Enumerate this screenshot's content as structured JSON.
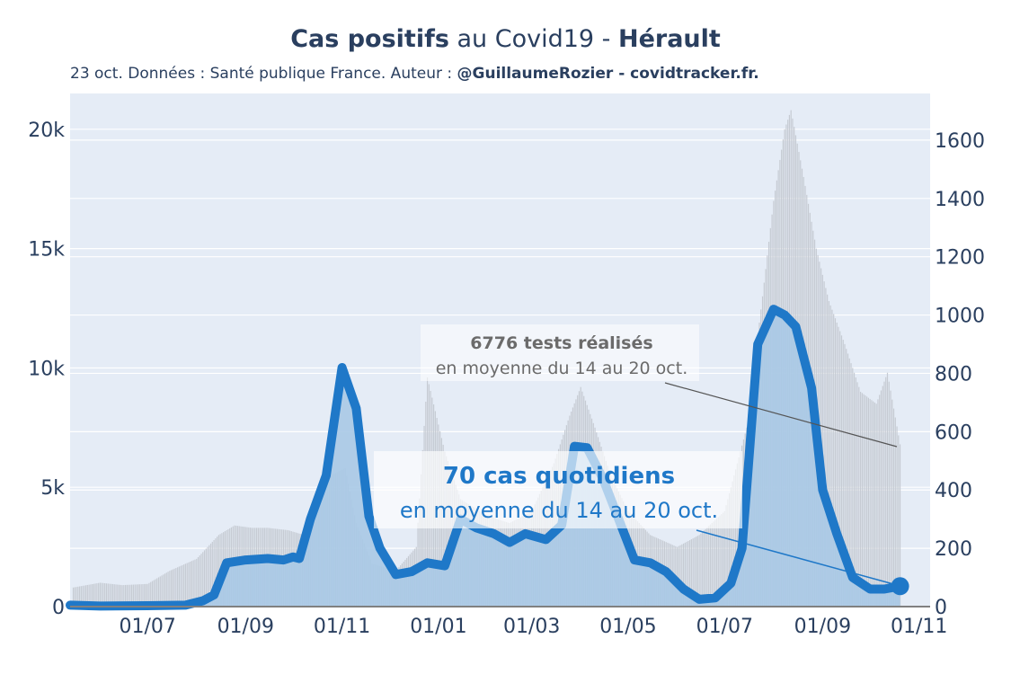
{
  "title": {
    "part1": "Cas positifs",
    "part2": " au Covid19 - ",
    "part3": "Hérault"
  },
  "subtitle": {
    "text": "23 oct. Données : Santé publique France. Auteur : ",
    "author": "@GuillaumeRozier - covidtracker.fr."
  },
  "colors": {
    "cases_line": "#1f78c8",
    "cases_fill": "#a9c9e6",
    "tests_bars": "#c6cbd3",
    "plot_bg": "#e5ecf6",
    "grid": "#ffffff",
    "annotation_bg": "#ffffff"
  },
  "annotations": {
    "tests": {
      "bold": "6776 tests réalisés",
      "text": "en moyenne du 14 au 20 oct."
    },
    "cases": {
      "bold": "70 cas quotidiens",
      "text": "en moyenne du 14 au 20 oct."
    }
  },
  "chart_data": {
    "type": "line",
    "x_tick_labels": [
      "01/07",
      "01/09",
      "01/11",
      "01/01",
      "01/03",
      "01/05",
      "01/07",
      "01/09",
      "01/11"
    ],
    "x_range": [
      "2020-05-13",
      "2021-11-08"
    ],
    "y_left": {
      "tick_labels": [
        "0",
        "5k",
        "10k",
        "15k",
        "20k"
      ],
      "range": [
        0,
        21500
      ]
    },
    "y_right": {
      "tick_labels": [
        "0",
        "200",
        "400",
        "600",
        "800",
        "1000",
        "1200",
        "1400",
        "1600"
      ],
      "range": [
        0,
        1760
      ]
    },
    "legend": "none",
    "grid": true,
    "series": [
      {
        "axis": "left",
        "style": "bars",
        "points": [
          [
            "2020-05-15",
            800
          ],
          [
            "2020-06-01",
            1000
          ],
          [
            "2020-06-15",
            900
          ],
          [
            "2020-07-01",
            950
          ],
          [
            "2020-07-15",
            1500
          ],
          [
            "2020-08-01",
            2000
          ],
          [
            "2020-08-15",
            3000
          ],
          [
            "2020-08-25",
            3400
          ],
          [
            "2020-09-05",
            3300
          ],
          [
            "2020-09-15",
            3300
          ],
          [
            "2020-09-28",
            3200
          ],
          [
            "2020-10-08",
            3000
          ],
          [
            "2020-10-15",
            4500
          ],
          [
            "2020-10-25",
            5500
          ],
          [
            "2020-11-03",
            5800
          ],
          [
            "2020-11-10",
            3500
          ],
          [
            "2020-11-20",
            1800
          ],
          [
            "2020-12-05",
            1500
          ],
          [
            "2020-12-18",
            2500
          ],
          [
            "2020-12-25",
            9600
          ],
          [
            "2021-01-05",
            6500
          ],
          [
            "2021-01-15",
            4500
          ],
          [
            "2021-02-01",
            3800
          ],
          [
            "2021-02-15",
            3500
          ],
          [
            "2021-03-01",
            4000
          ],
          [
            "2021-03-15",
            6000
          ],
          [
            "2021-03-25",
            8000
          ],
          [
            "2021-04-01",
            9200
          ],
          [
            "2021-04-10",
            7500
          ],
          [
            "2021-04-20",
            5500
          ],
          [
            "2021-05-01",
            4000
          ],
          [
            "2021-05-15",
            3000
          ],
          [
            "2021-06-01",
            2500
          ],
          [
            "2021-06-15",
            3000
          ],
          [
            "2021-07-01",
            4000
          ],
          [
            "2021-07-15",
            7500
          ],
          [
            "2021-07-25",
            13000
          ],
          [
            "2021-08-01",
            17000
          ],
          [
            "2021-08-08",
            20000
          ],
          [
            "2021-08-12",
            20800
          ],
          [
            "2021-08-20",
            18000
          ],
          [
            "2021-08-28",
            15000
          ],
          [
            "2021-09-05",
            12800
          ],
          [
            "2021-09-15",
            11000
          ],
          [
            "2021-09-25",
            9000
          ],
          [
            "2021-10-05",
            8500
          ],
          [
            "2021-10-12",
            9800
          ],
          [
            "2021-10-20",
            6800
          ]
        ]
      },
      {
        "axis": "right",
        "style": "line_filled",
        "points": [
          [
            "2020-05-13",
            5
          ],
          [
            "2020-06-01",
            2
          ],
          [
            "2020-07-01",
            3
          ],
          [
            "2020-07-25",
            5
          ],
          [
            "2020-08-05",
            20
          ],
          [
            "2020-08-12",
            40
          ],
          [
            "2020-08-20",
            150
          ],
          [
            "2020-09-01",
            160
          ],
          [
            "2020-09-15",
            165
          ],
          [
            "2020-09-25",
            160
          ],
          [
            "2020-10-01",
            170
          ],
          [
            "2020-10-05",
            165
          ],
          [
            "2020-10-12",
            300
          ],
          [
            "2020-10-22",
            450
          ],
          [
            "2020-11-01",
            820
          ],
          [
            "2020-11-10",
            680
          ],
          [
            "2020-11-18",
            310
          ],
          [
            "2020-11-25",
            200
          ],
          [
            "2020-12-05",
            110
          ],
          [
            "2020-12-15",
            120
          ],
          [
            "2020-12-25",
            150
          ],
          [
            "2021-01-05",
            140
          ],
          [
            "2021-01-15",
            300
          ],
          [
            "2021-01-25",
            270
          ],
          [
            "2021-02-05",
            250
          ],
          [
            "2021-02-15",
            220
          ],
          [
            "2021-02-25",
            250
          ],
          [
            "2021-03-10",
            230
          ],
          [
            "2021-03-20",
            280
          ],
          [
            "2021-03-28",
            550
          ],
          [
            "2021-04-05",
            545
          ],
          [
            "2021-04-15",
            440
          ],
          [
            "2021-04-25",
            300
          ],
          [
            "2021-05-05",
            160
          ],
          [
            "2021-05-15",
            150
          ],
          [
            "2021-05-25",
            120
          ],
          [
            "2021-06-05",
            60
          ],
          [
            "2021-06-15",
            25
          ],
          [
            "2021-06-25",
            30
          ],
          [
            "2021-07-05",
            80
          ],
          [
            "2021-07-12",
            200
          ],
          [
            "2021-07-22",
            900
          ],
          [
            "2021-08-01",
            1020
          ],
          [
            "2021-08-08",
            1000
          ],
          [
            "2021-08-15",
            960
          ],
          [
            "2021-08-25",
            750
          ],
          [
            "2021-09-01",
            400
          ],
          [
            "2021-09-10",
            250
          ],
          [
            "2021-09-20",
            100
          ],
          [
            "2021-10-01",
            60
          ],
          [
            "2021-10-10",
            60
          ],
          [
            "2021-10-20",
            70
          ]
        ]
      }
    ]
  }
}
